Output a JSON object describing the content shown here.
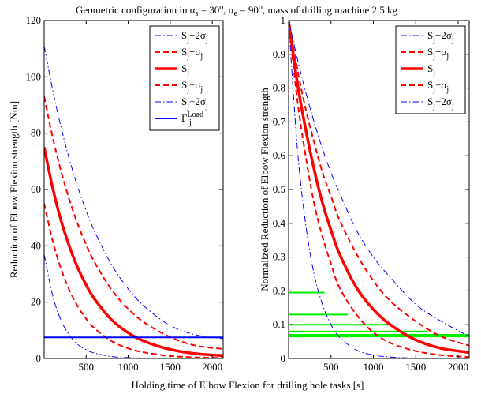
{
  "figure": {
    "title_prefix": "Geometric configuration in ",
    "title_alpha_s": "α",
    "title_alpha_s_sub": "s",
    "title_mid1": " = 30",
    "title_deg": "o",
    "title_comma": ", ",
    "title_alpha_e": "α",
    "title_alpha_e_sub": "e",
    "title_mid2": " = 90",
    "title_deg2": "o",
    "title_suffix": ", mass of drilling machine 2.5 kg",
    "xlabel": "Holding time of Elbow Flexion for drilling hole tasks [s]"
  },
  "colors": {
    "red": "#ff0000",
    "blue": "#0000ff",
    "green": "#00ee00",
    "axis": "#000000"
  },
  "chart_data": [
    {
      "type": "line",
      "ylabel": "Reduction of Elbow Flexion strength [Nm]",
      "xlim": [
        0,
        2130
      ],
      "ylim": [
        0,
        120
      ],
      "xticks": [
        500,
        1000,
        1500,
        2000
      ],
      "yticks": [
        0,
        20,
        40,
        60,
        80,
        100,
        120
      ],
      "legend_position": "top-right",
      "series": [
        {
          "name": "S_j − 2σ_j",
          "style": "dashdot",
          "color": "blue",
          "width": 1,
          "x": [
            0,
            100,
            200,
            300,
            400,
            500,
            600,
            800,
            1000,
            1200,
            1500,
            1800,
            2130
          ],
          "y": [
            37,
            22.5,
            13.6,
            8.3,
            5.0,
            3.1,
            1.9,
            0.7,
            0.3,
            0.1,
            0.0,
            0.0,
            0.0
          ]
        },
        {
          "name": "S_j − σ_j",
          "style": "dashed",
          "color": "red",
          "width": 2,
          "x": [
            0,
            100,
            200,
            300,
            400,
            500,
            600,
            800,
            1000,
            1200,
            1500,
            1800,
            2130
          ],
          "y": [
            55,
            41.9,
            31.9,
            24.3,
            18.5,
            14.1,
            10.7,
            6.2,
            3.6,
            2.1,
            0.9,
            0.4,
            0.2
          ]
        },
        {
          "name": "S_j",
          "style": "solid",
          "color": "red",
          "width": 3.5,
          "x": [
            0,
            100,
            200,
            300,
            400,
            500,
            600,
            800,
            1000,
            1200,
            1500,
            1800,
            2130
          ],
          "y": [
            75,
            60.7,
            49.1,
            39.8,
            32.2,
            26.1,
            21.1,
            13.8,
            9.1,
            6.0,
            3.2,
            1.7,
            1.0
          ]
        },
        {
          "name": "S_j + σ_j",
          "style": "dashed",
          "color": "red",
          "width": 2,
          "x": [
            0,
            100,
            200,
            300,
            400,
            500,
            600,
            800,
            1000,
            1200,
            1500,
            1800,
            2130
          ],
          "y": [
            93,
            78.7,
            66.6,
            56.4,
            47.7,
            40.4,
            34.2,
            24.5,
            17.6,
            12.6,
            7.6,
            4.6,
            3.4
          ]
        },
        {
          "name": "S_j + 2σ_j",
          "style": "dashdot",
          "color": "blue",
          "width": 1,
          "x": [
            0,
            100,
            200,
            300,
            400,
            500,
            600,
            800,
            1000,
            1200,
            1500,
            1800,
            2130
          ],
          "y": [
            111,
            95.5,
            82.2,
            70.7,
            60.9,
            52.4,
            45.1,
            33.4,
            24.7,
            18.3,
            11.7,
            8.4,
            7.0
          ]
        },
        {
          "name": "Γ_j^Load",
          "style": "solid",
          "color": "blue",
          "width": 2,
          "x": [
            0,
            2130
          ],
          "y": [
            7.5,
            7.5
          ]
        }
      ],
      "legend_labels": [
        {
          "main": "S",
          "sub": "j",
          "op": "−2σ",
          "sub2": "j"
        },
        {
          "main": "S",
          "sub": "j",
          "op": "−σ",
          "sub2": "j"
        },
        {
          "main": "S",
          "sub": "j",
          "op": "",
          "sub2": ""
        },
        {
          "main": "S",
          "sub": "j",
          "op": "+σ",
          "sub2": "j"
        },
        {
          "main": "S",
          "sub": "j",
          "op": "+2σ",
          "sub2": "j"
        },
        {
          "main": "Γ",
          "sub": "j",
          "op": "",
          "sub2": "",
          "sup": "Load"
        }
      ]
    },
    {
      "type": "line",
      "ylabel": "Normalized Reduction of Elbow Flexion strength",
      "xlim": [
        0,
        2130
      ],
      "ylim": [
        0,
        1
      ],
      "xticks": [
        500,
        1000,
        1500,
        2000
      ],
      "yticks": [
        0,
        0.1,
        0.2,
        0.3,
        0.4,
        0.5,
        0.6,
        0.7,
        0.8,
        0.9,
        1
      ],
      "ytick_labels": [
        "0",
        "0.1",
        "0.2",
        "0.3",
        "0.4",
        "0.5",
        "0.6",
        "0.7",
        "0.8",
        "0.9",
        "1"
      ],
      "legend_position": "top-right",
      "series": [
        {
          "name": "S_j − 2σ_j",
          "style": "dashdot",
          "color": "blue",
          "width": 1,
          "x": [
            0,
            100,
            200,
            300,
            400,
            500,
            600,
            800,
            1000,
            1200,
            1500,
            1800,
            2130
          ],
          "y": [
            1.0,
            0.63,
            0.4,
            0.25,
            0.16,
            0.1,
            0.063,
            0.025,
            0.01,
            0.004,
            0.001,
            0.0,
            0.0
          ]
        },
        {
          "name": "S_j − σ_j",
          "style": "dashed",
          "color": "red",
          "width": 2,
          "x": [
            0,
            100,
            200,
            300,
            400,
            500,
            600,
            800,
            1000,
            1200,
            1500,
            1800,
            2130
          ],
          "y": [
            1.0,
            0.77,
            0.6,
            0.46,
            0.36,
            0.28,
            0.21,
            0.13,
            0.077,
            0.046,
            0.022,
            0.01,
            0.004
          ]
        },
        {
          "name": "S_j",
          "style": "solid",
          "color": "red",
          "width": 3.5,
          "x": [
            0,
            100,
            200,
            300,
            400,
            500,
            600,
            800,
            1000,
            1200,
            1500,
            1800,
            2130
          ],
          "y": [
            1.0,
            0.82,
            0.68,
            0.56,
            0.46,
            0.38,
            0.31,
            0.21,
            0.145,
            0.1,
            0.055,
            0.03,
            0.018
          ]
        },
        {
          "name": "S_j + σ_j",
          "style": "dashed",
          "color": "red",
          "width": 2,
          "x": [
            0,
            100,
            200,
            300,
            400,
            500,
            600,
            800,
            1000,
            1200,
            1500,
            1800,
            2130
          ],
          "y": [
            1.0,
            0.86,
            0.74,
            0.64,
            0.55,
            0.48,
            0.41,
            0.31,
            0.23,
            0.17,
            0.11,
            0.065,
            0.038
          ]
        },
        {
          "name": "S_j + 2σ_j",
          "style": "dashdot",
          "color": "blue",
          "width": 1,
          "x": [
            0,
            100,
            200,
            300,
            400,
            500,
            600,
            800,
            1000,
            1200,
            1500,
            1800,
            2130
          ],
          "y": [
            1.0,
            0.89,
            0.79,
            0.7,
            0.62,
            0.55,
            0.49,
            0.38,
            0.3,
            0.24,
            0.16,
            0.11,
            0.065
          ]
        }
      ],
      "hlines": [
        {
          "y": 0.195,
          "x_end": 425
        },
        {
          "y": 0.13,
          "x_end": 700
        },
        {
          "y": 0.1,
          "x_end": 1210
        },
        {
          "y": 0.08,
          "x_end": 1640
        },
        {
          "y": 0.07,
          "x_end": 2130
        },
        {
          "y": 0.065,
          "x_end": 2130
        }
      ],
      "hline_color": "green",
      "legend_labels": [
        {
          "main": "S",
          "sub": "j",
          "op": "−2σ",
          "sub2": "j"
        },
        {
          "main": "S",
          "sub": "j",
          "op": "−σ",
          "sub2": "j"
        },
        {
          "main": "S",
          "sub": "j",
          "op": "",
          "sub2": ""
        },
        {
          "main": "S",
          "sub": "j",
          "op": "+σ",
          "sub2": "j"
        },
        {
          "main": "S",
          "sub": "j",
          "op": "+2σ",
          "sub2": "j"
        }
      ]
    }
  ]
}
